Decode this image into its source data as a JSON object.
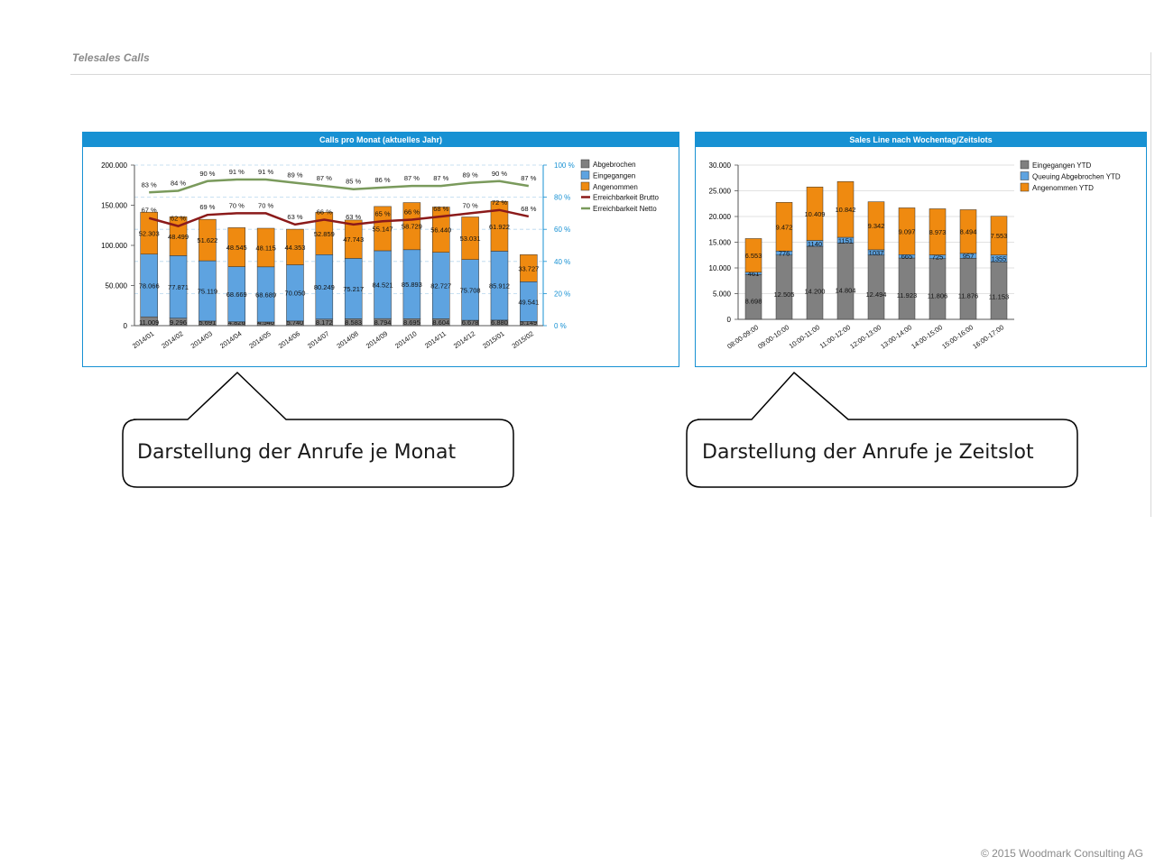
{
  "page": {
    "title": "Telesales Calls",
    "footer": "© 2015 Woodmark Consulting AG"
  },
  "callouts": {
    "left": "Darstellung der Anrufe je Monat",
    "right": "Darstellung der Anrufe je Zeitslot"
  },
  "colors": {
    "header_blue": "#1791d3",
    "abgebrochen": "#808080",
    "eingegangen": "#5ea3e0",
    "angenommen": "#ef8a10",
    "brutto": "#8b1a1a",
    "netto": "#7a9a5c"
  },
  "chart_data": [
    {
      "type": "bar",
      "title": "Calls pro Monat (aktuelles Jahr)",
      "stacked": true,
      "categories": [
        "2014/01",
        "2014/02",
        "2014/03",
        "2014/04",
        "2014/05",
        "2014/06",
        "2014/07",
        "2014/08",
        "2014/09",
        "2014/10",
        "2014/11",
        "2014/12",
        "2015/01",
        "2015/02"
      ],
      "series": [
        {
          "name": "Abgebrochen",
          "values": [
            11009,
            9296,
            5691,
            4826,
            4540,
            5740,
            8172,
            8583,
            8794,
            8695,
            8604,
            6678,
            6880,
            5149
          ],
          "labels": [
            "11.009",
            "9.296",
            "5.691",
            "4.826",
            "4.540",
            "5.740",
            "8.172",
            "8.583",
            "8.794",
            "8.695",
            "8.604",
            "6.678",
            "6.880",
            "5.149"
          ]
        },
        {
          "name": "Eingegangen",
          "values": [
            78066,
            77871,
            75119,
            68669,
            68689,
            70050,
            80249,
            75217,
            84521,
            85893,
            82727,
            75708,
            85912,
            49541
          ],
          "labels": [
            "78.066",
            "77.871",
            "75.119",
            "68.669",
            "68.689",
            "70.050",
            "80.249",
            "75.217",
            "84.521",
            "85.893",
            "82.727",
            "75.708",
            "85.912",
            "49.541"
          ]
        },
        {
          "name": "Angenommen",
          "values": [
            52303,
            48499,
            51622,
            48545,
            48115,
            44353,
            52859,
            47743,
            55147,
            58729,
            56440,
            53031,
            61922,
            33727
          ],
          "labels": [
            "52.303",
            "48.499",
            "51.622",
            "48.545",
            "48.115",
            "44.353",
            "52.859",
            "47.743",
            "55.147",
            "58.729",
            "56.440",
            "53.031",
            "61.922",
            "33.727"
          ]
        }
      ],
      "lines": [
        {
          "name": "Erreichbarkeit Brutto",
          "values": [
            67,
            62,
            69,
            70,
            70,
            63,
            66,
            63,
            65,
            66,
            68,
            70,
            72,
            68
          ],
          "labels": [
            "67 %",
            "62 %",
            "69 %",
            "70 %",
            "70 %",
            "63 %",
            "66 %",
            "63 %",
            "65 %",
            "66 %",
            "68 %",
            "70 %",
            "72 %",
            "68 %"
          ]
        },
        {
          "name": "Erreichbarkeit Netto",
          "values": [
            83,
            84,
            90,
            91,
            91,
            89,
            87,
            85,
            86,
            87,
            87,
            89,
            90,
            87
          ],
          "labels": [
            "83 %",
            "84 %",
            "90 %",
            "91 %",
            "91 %",
            "89 %",
            "87 %",
            "85 %",
            "86 %",
            "87 %",
            "87 %",
            "89 %",
            "90 %",
            "87 %"
          ]
        }
      ],
      "ylim": [
        0,
        200000
      ],
      "yticks": [
        "0",
        "50.000",
        "100.000",
        "150.000",
        "200.000"
      ],
      "y2lim": [
        0,
        100
      ],
      "y2ticks": [
        "0 %",
        "20 %",
        "40 %",
        "60 %",
        "80 %",
        "100 %"
      ],
      "legend": "top-right",
      "grid": true
    },
    {
      "type": "bar",
      "title": "Sales Line nach Wochentag/Zeitslots",
      "stacked": true,
      "categories": [
        "08:00-09:00",
        "09:00-10:00",
        "10:00-11:00",
        "11:00-12:00",
        "12:00-13:00",
        "13:00-14:00",
        "14:00-15:00",
        "15:00-16:00",
        "16:00-17:00"
      ],
      "series": [
        {
          "name": "Eingegangen YTD",
          "values": [
            8698,
            12505,
            14200,
            14804,
            12494,
            11923,
            11806,
            11876,
            11153
          ],
          "labels": [
            "8.698",
            "12.505",
            "14.200",
            "14.804",
            "12.494",
            "11.923",
            "11.806",
            "11.876",
            "11.153"
          ]
        },
        {
          "name": "Queuing Abgebrochen YTD",
          "values": [
            461,
            776,
            1140,
            1151,
            1037,
            665,
            725,
            957,
            1355
          ],
          "labels": [
            "461",
            "776",
            "1140",
            "1151",
            "1037",
            "665",
            "725",
            "957",
            "1355"
          ]
        },
        {
          "name": "Angenommen YTD",
          "values": [
            6553,
            9472,
            10409,
            10842,
            9342,
            9097,
            8973,
            8494,
            7553
          ],
          "labels": [
            "6.553",
            "9.472",
            "10.409",
            "10.842",
            "9.342",
            "9.097",
            "8.973",
            "8.494",
            "7.553"
          ]
        }
      ],
      "ylim": [
        0,
        30000
      ],
      "yticks": [
        "0",
        "5.000",
        "10.000",
        "15.000",
        "20.000",
        "25.000",
        "30.000"
      ],
      "legend": "top-right",
      "grid": true
    }
  ]
}
